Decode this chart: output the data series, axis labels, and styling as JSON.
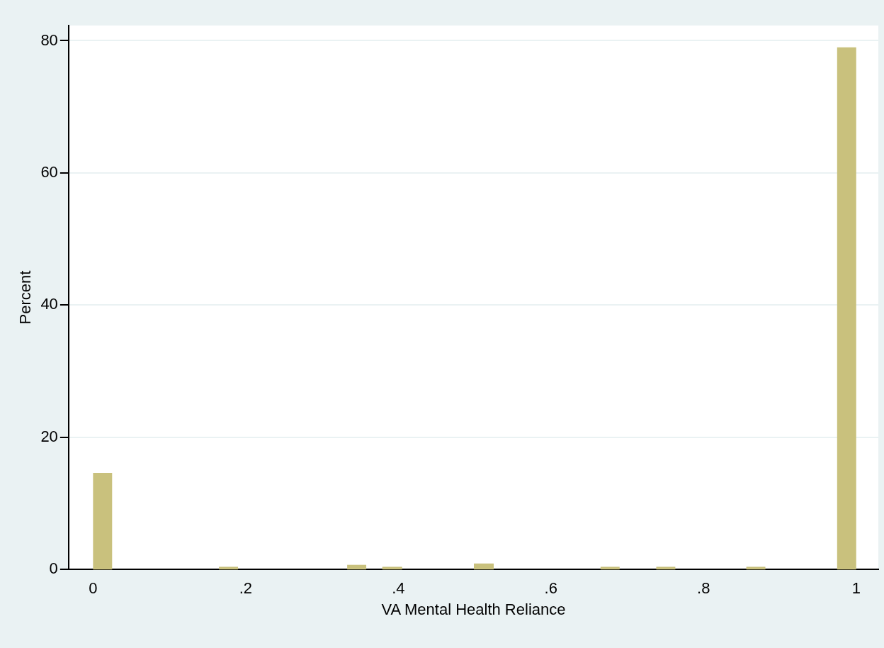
{
  "chart_data": {
    "type": "histogram",
    "xlabel": "VA Mental Health Reliance",
    "ylabel": "Percent",
    "bins": [
      0,
      0.025,
      0.165,
      0.19,
      0.333,
      0.358,
      0.379,
      0.405,
      0.499,
      0.525,
      0.665,
      0.69,
      0.738,
      0.763,
      0.856,
      0.881,
      0.975,
      1
    ],
    "values": [
      14.6,
      0,
      0.4,
      0,
      0.7,
      0,
      0.4,
      0,
      0.9,
      0,
      0.4,
      0,
      0.4,
      0,
      0.4,
      0,
      79
    ],
    "color": "#c9c17d",
    "xlim": [
      -0.032,
      1.029
    ],
    "xticks": [
      0,
      {
        "value": 0.2,
        "label": ".2"
      },
      {
        "value": 0.4,
        "label": ".4"
      },
      {
        "value": 0.6,
        "label": ".6"
      },
      {
        "value": 0.8,
        "label": ".8"
      },
      1
    ],
    "ylim": [
      0,
      82.3
    ],
    "yticks": [
      0,
      20,
      40,
      60,
      80
    ],
    "grid": "y"
  }
}
